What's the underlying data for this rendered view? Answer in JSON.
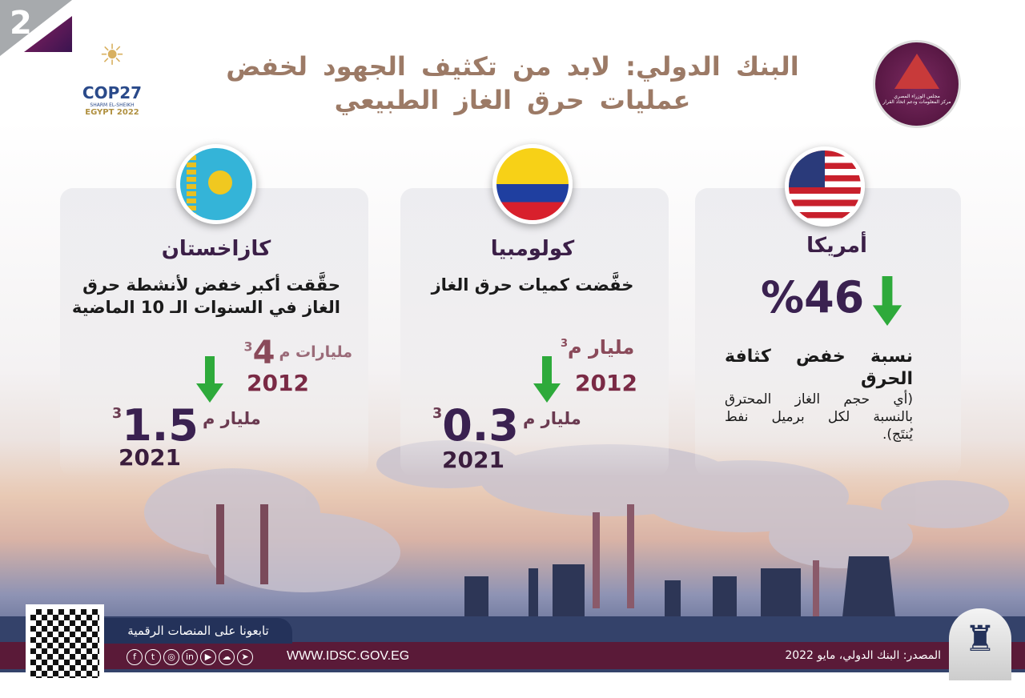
{
  "page_number": "2",
  "title_line1": "البنك الدولي: لابد من تكثيف الجهود لخفض",
  "title_line2": "عمليات حرق الغاز الطبيعي",
  "logos": {
    "cop27": "COP27",
    "cop27_sub1": "SHARM EL-SHEIKH",
    "cop27_sub2": "EGYPT 2022",
    "idsc_line1": "مجلس الوزراء المصري",
    "idsc_line2": "مركز المعلومات ودعم اتخاذ القرار"
  },
  "cards": [
    {
      "country": "كازاخستان",
      "flag": "kazakhstan-flag",
      "desc1": "حقَّقت أكبر خفض لأنشطة حرق",
      "desc2": "الغاز في السنوات الـ 10 الماضية",
      "value_2012": "4",
      "unit_2012": "مليارات م",
      "year_a": "2012",
      "value_2021": "1.5",
      "unit_2021": "مليار م",
      "year_b": "2021"
    },
    {
      "country": "كولومبيا",
      "flag": "colombia-flag",
      "desc1": "خفَّضت كميات حرق الغاز",
      "value_2012": "",
      "unit_2012": "مليار م",
      "year_a": "2012",
      "value_2021": "0.3",
      "unit_2021": "مليار م",
      "year_b": "2021"
    },
    {
      "country": "أمريكا",
      "flag": "usa-flag",
      "value": "%46",
      "label1": "نسبة خفض كثافة",
      "label2": "الحرق",
      "note1": "(أي حجم الغاز المحترق",
      "note2": "بالنسبة لكل برميل نفط",
      "note3": "يُنتَج)."
    }
  ],
  "superscript": "3",
  "colors": {
    "maroon": "#5a1a38",
    "navy": "#24325a",
    "green_arrow": "#2eaa3b",
    "title": "#9c7a66",
    "number": "#3a2150"
  },
  "footer": {
    "follow": "تابعونا على المنصات الرقمية",
    "website": "WWW.IDSC.GOV.EG",
    "source": "المصدر: البنك الدولي، مايو 2022",
    "social": [
      "f",
      "t",
      "ig",
      "in",
      "yt",
      "sc",
      "tg"
    ]
  }
}
